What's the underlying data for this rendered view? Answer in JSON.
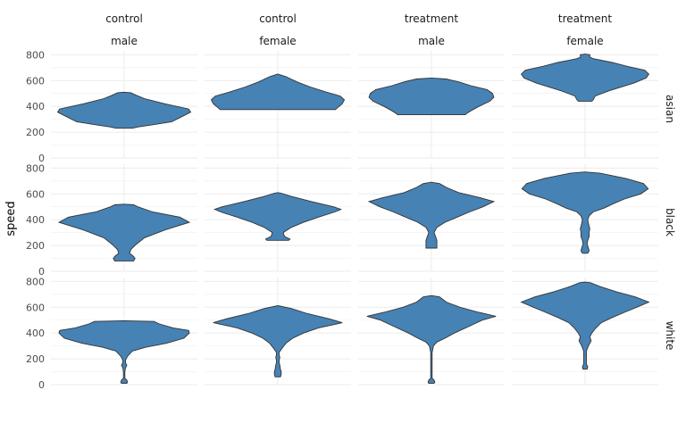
{
  "chart_data": {
    "type": "violin",
    "ylabel": "speed",
    "ylim": [
      0,
      830
    ],
    "yticks": [
      0,
      200,
      400,
      600,
      800
    ],
    "fill_color": "#4682b4",
    "outline_color": "#333333",
    "grid": true,
    "col_strips": [
      {
        "line1": "control",
        "line2": "male"
      },
      {
        "line1": "control",
        "line2": "female"
      },
      {
        "line1": "treatment",
        "line2": "male"
      },
      {
        "line1": "treatment",
        "line2": "female"
      }
    ],
    "row_strips": [
      "asian",
      "black",
      "white"
    ],
    "panels": [
      {
        "row": "asian",
        "col": 0,
        "profile": [
          [
            230,
            0.12
          ],
          [
            240,
            0.2
          ],
          [
            255,
            0.4
          ],
          [
            280,
            0.7
          ],
          [
            320,
            0.85
          ],
          [
            355,
            0.98
          ],
          [
            380,
            0.95
          ],
          [
            420,
            0.6
          ],
          [
            460,
            0.3
          ],
          [
            490,
            0.16
          ],
          [
            505,
            0.1
          ],
          [
            510,
            0
          ]
        ]
      },
      {
        "row": "asian",
        "col": 1,
        "profile": [
          [
            375,
            0.85
          ],
          [
            390,
            0.88
          ],
          [
            420,
            0.95
          ],
          [
            450,
            0.98
          ],
          [
            480,
            0.92
          ],
          [
            510,
            0.72
          ],
          [
            550,
            0.48
          ],
          [
            590,
            0.28
          ],
          [
            630,
            0.12
          ],
          [
            650,
            0
          ]
        ]
      },
      {
        "row": "asian",
        "col": 2,
        "profile": [
          [
            335,
            0.5
          ],
          [
            345,
            0.52
          ],
          [
            365,
            0.58
          ],
          [
            400,
            0.7
          ],
          [
            440,
            0.86
          ],
          [
            470,
            0.92
          ],
          [
            500,
            0.9
          ],
          [
            530,
            0.82
          ],
          [
            560,
            0.58
          ],
          [
            590,
            0.4
          ],
          [
            612,
            0.22
          ],
          [
            620,
            0
          ]
        ]
      },
      {
        "row": "asian",
        "col": 3,
        "profile": [
          [
            440,
            0.1
          ],
          [
            450,
            0.12
          ],
          [
            480,
            0.15
          ],
          [
            520,
            0.35
          ],
          [
            580,
            0.72
          ],
          [
            620,
            0.9
          ],
          [
            650,
            0.94
          ],
          [
            680,
            0.88
          ],
          [
            710,
            0.62
          ],
          [
            740,
            0.4
          ],
          [
            770,
            0.12
          ],
          [
            780,
            0.07
          ],
          [
            800,
            0.07
          ],
          [
            805,
            0
          ]
        ]
      },
      {
        "row": "black",
        "col": 0,
        "profile": [
          [
            80,
            0.14
          ],
          [
            100,
            0.16
          ],
          [
            120,
            0.13
          ],
          [
            140,
            0.08
          ],
          [
            170,
            0.1
          ],
          [
            210,
            0.18
          ],
          [
            260,
            0.3
          ],
          [
            320,
            0.6
          ],
          [
            380,
            0.96
          ],
          [
            420,
            0.82
          ],
          [
            460,
            0.42
          ],
          [
            500,
            0.2
          ],
          [
            515,
            0.14
          ],
          [
            520,
            0
          ]
        ]
      },
      {
        "row": "black",
        "col": 1,
        "profile": [
          [
            240,
            0.16
          ],
          [
            250,
            0.18
          ],
          [
            270,
            0.1
          ],
          [
            300,
            0.08
          ],
          [
            340,
            0.2
          ],
          [
            380,
            0.38
          ],
          [
            420,
            0.6
          ],
          [
            460,
            0.84
          ],
          [
            480,
            0.93
          ],
          [
            500,
            0.82
          ],
          [
            540,
            0.5
          ],
          [
            580,
            0.2
          ],
          [
            605,
            0.05
          ],
          [
            610,
            0
          ]
        ]
      },
      {
        "row": "black",
        "col": 2,
        "profile": [
          [
            180,
            0.08
          ],
          [
            200,
            0.08
          ],
          [
            240,
            0.08
          ],
          [
            270,
            0.06
          ],
          [
            300,
            0.04
          ],
          [
            340,
            0.08
          ],
          [
            380,
            0.2
          ],
          [
            420,
            0.38
          ],
          [
            460,
            0.56
          ],
          [
            500,
            0.76
          ],
          [
            540,
            0.92
          ],
          [
            570,
            0.72
          ],
          [
            610,
            0.4
          ],
          [
            650,
            0.22
          ],
          [
            680,
            0.12
          ],
          [
            690,
            0
          ]
        ]
      },
      {
        "row": "black",
        "col": 3,
        "profile": [
          [
            140,
            0.04
          ],
          [
            160,
            0.06
          ],
          [
            180,
            0.05
          ],
          [
            210,
            0.03
          ],
          [
            240,
            0.04
          ],
          [
            270,
            0.06
          ],
          [
            300,
            0.06
          ],
          [
            330,
            0.07
          ],
          [
            370,
            0.05
          ],
          [
            400,
            0.04
          ],
          [
            430,
            0.06
          ],
          [
            460,
            0.12
          ],
          [
            490,
            0.28
          ],
          [
            520,
            0.4
          ],
          [
            560,
            0.58
          ],
          [
            600,
            0.82
          ],
          [
            640,
            0.93
          ],
          [
            680,
            0.86
          ],
          [
            720,
            0.6
          ],
          [
            760,
            0.22
          ],
          [
            770,
            0
          ]
        ]
      },
      {
        "row": "white",
        "col": 0,
        "profile": [
          [
            10,
            0.04
          ],
          [
            20,
            0.05
          ],
          [
            35,
            0.04
          ],
          [
            50,
            0.01
          ],
          [
            100,
            0.01
          ],
          [
            130,
            0.02
          ],
          [
            150,
            0.04
          ],
          [
            170,
            0.02
          ],
          [
            190,
            0.02
          ],
          [
            220,
            0.05
          ],
          [
            260,
            0.12
          ],
          [
            290,
            0.32
          ],
          [
            320,
            0.62
          ],
          [
            360,
            0.88
          ],
          [
            400,
            0.96
          ],
          [
            420,
            0.95
          ],
          [
            440,
            0.72
          ],
          [
            470,
            0.52
          ],
          [
            490,
            0.44
          ],
          [
            495,
            0
          ]
        ]
      },
      {
        "row": "white",
        "col": 1,
        "profile": [
          [
            60,
            0.04
          ],
          [
            80,
            0.05
          ],
          [
            100,
            0.05
          ],
          [
            120,
            0.04
          ],
          [
            150,
            0.03
          ],
          [
            170,
            0.02
          ],
          [
            190,
            0.02
          ],
          [
            210,
            0.03
          ],
          [
            230,
            0.02
          ],
          [
            250,
            0.02
          ],
          [
            280,
            0.06
          ],
          [
            320,
            0.12
          ],
          [
            360,
            0.22
          ],
          [
            400,
            0.38
          ],
          [
            440,
            0.6
          ],
          [
            480,
            0.95
          ],
          [
            510,
            0.76
          ],
          [
            550,
            0.44
          ],
          [
            590,
            0.2
          ],
          [
            612,
            0
          ]
        ]
      },
      {
        "row": "white",
        "col": 2,
        "profile": [
          [
            10,
            0.04
          ],
          [
            20,
            0.05
          ],
          [
            35,
            0.04
          ],
          [
            50,
            0.01
          ],
          [
            150,
            0.01
          ],
          [
            250,
            0.01
          ],
          [
            300,
            0.03
          ],
          [
            330,
            0.08
          ],
          [
            360,
            0.2
          ],
          [
            400,
            0.34
          ],
          [
            450,
            0.55
          ],
          [
            500,
            0.75
          ],
          [
            530,
            0.95
          ],
          [
            560,
            0.7
          ],
          [
            600,
            0.42
          ],
          [
            640,
            0.22
          ],
          [
            680,
            0.12
          ],
          [
            690,
            0
          ]
        ]
      },
      {
        "row": "white",
        "col": 3,
        "profile": [
          [
            120,
            0.03
          ],
          [
            140,
            0.04
          ],
          [
            160,
            0.02
          ],
          [
            200,
            0.02
          ],
          [
            260,
            0.02
          ],
          [
            300,
            0.05
          ],
          [
            340,
            0.09
          ],
          [
            370,
            0.07
          ],
          [
            400,
            0.1
          ],
          [
            440,
            0.16
          ],
          [
            480,
            0.24
          ],
          [
            520,
            0.4
          ],
          [
            560,
            0.58
          ],
          [
            600,
            0.76
          ],
          [
            640,
            0.94
          ],
          [
            680,
            0.74
          ],
          [
            720,
            0.46
          ],
          [
            760,
            0.22
          ],
          [
            790,
            0.08
          ],
          [
            795,
            0
          ]
        ]
      }
    ]
  }
}
